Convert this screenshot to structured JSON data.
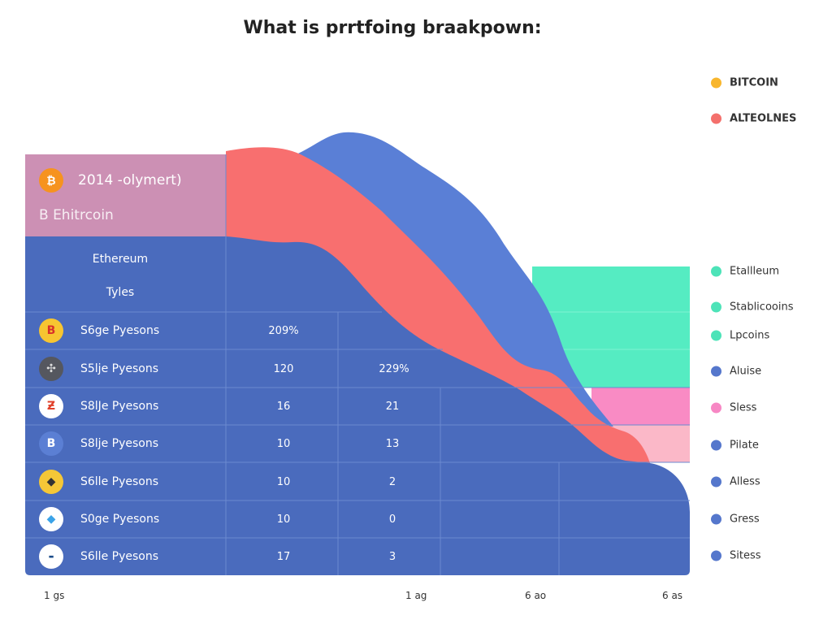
{
  "title": "What is prrtfoing braakpown:",
  "chart_data": {
    "type": "area",
    "title": "What is prrtfoing braakpown:",
    "header": {
      "line1": "2014 -olymert)",
      "line2": "B Ehitrcoin"
    },
    "row_header": [
      "Ethereum",
      "Tyles"
    ],
    "table_rows": [
      {
        "label": "S6ge Pyesons",
        "icon": "bitcoin-red-icon",
        "values": [
          "209%",
          ""
        ]
      },
      {
        "label": "S5lje Pyesons",
        "icon": "network-icon",
        "values": [
          "120",
          "229%"
        ]
      },
      {
        "label": "S8lJe Pyesons",
        "icon": "zigzag-icon",
        "values": [
          "16",
          "21"
        ]
      },
      {
        "label": "S8lje Pyesons",
        "icon": "bitcoin-blue-icon",
        "values": [
          "10",
          "13"
        ]
      },
      {
        "label": "S6lle Pyesons",
        "icon": "ethereum-dark-icon",
        "values": [
          "10",
          "2"
        ]
      },
      {
        "label": "S0ge Pyesons",
        "icon": "ethereum-blue-icon",
        "values": [
          "10",
          "0"
        ]
      },
      {
        "label": "S6lle Pyesons",
        "icon": "badge-icon",
        "values": [
          "17",
          "3"
        ]
      }
    ],
    "x_ticks": [
      "1 gs",
      "1 ag",
      "6 ao",
      "6 as"
    ],
    "legend": [
      {
        "name": "BITCOIN",
        "color": "#f8b62d"
      },
      {
        "name": "ALTEOLNES",
        "color": "#f4706c"
      },
      {
        "name": "Etallleum",
        "color": "#4de3b8"
      },
      {
        "name": "Stablicooins",
        "color": "#4de3b8"
      },
      {
        "name": "Lpcoins",
        "color": "#4de3b8"
      },
      {
        "name": "Aluise",
        "color": "#5577cc"
      },
      {
        "name": "Sless",
        "color": "#f787c4"
      },
      {
        "name": "Pilate",
        "color": "#5577cc"
      },
      {
        "name": "Alless",
        "color": "#5577cc"
      },
      {
        "name": "Gress",
        "color": "#5577cc"
      },
      {
        "name": "Sitess",
        "color": "#5577cc"
      }
    ],
    "colors": {
      "base": "#4a6bbd",
      "back_wave": "#5a7fd6",
      "front_wave": "#f86f6f",
      "header": "#cc90b4",
      "green": "#55ecc2",
      "pink": "#f98bc4",
      "light_pink": "#fbb8c8"
    },
    "legend_position": "right"
  }
}
